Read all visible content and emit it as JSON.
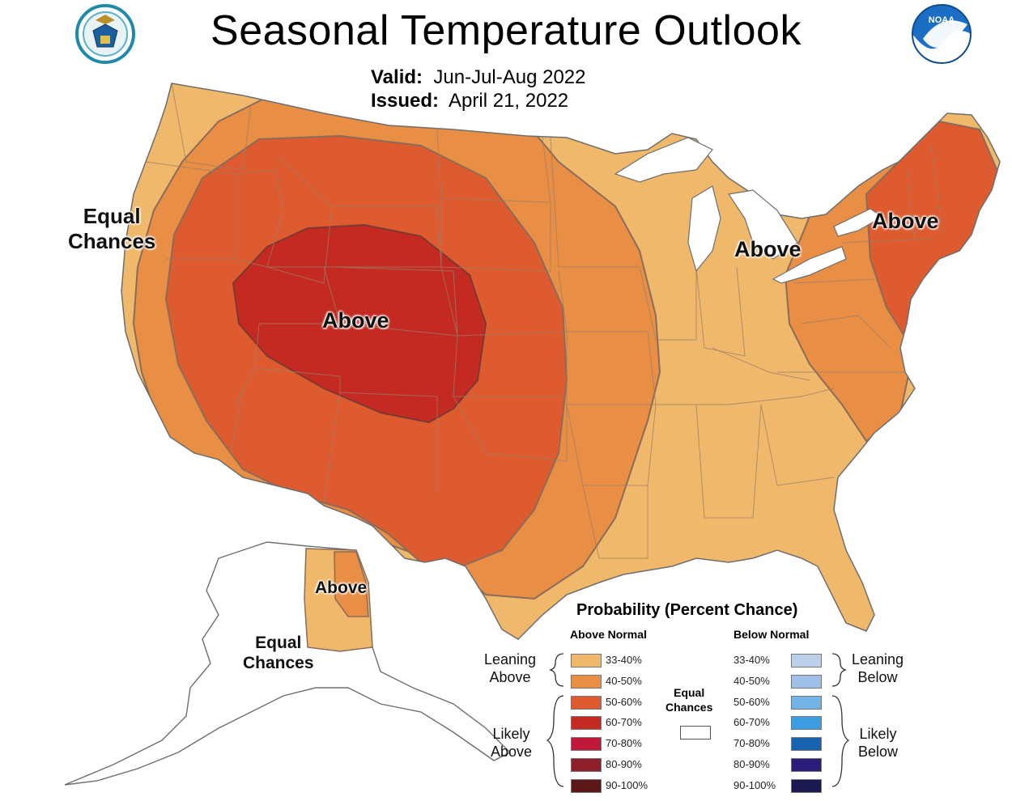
{
  "title": "Seasonal Temperature Outlook",
  "valid": {
    "label": "Valid:",
    "value": "Jun-Jul-Aug 2022"
  },
  "issued": {
    "label": "Issued:",
    "value": "April 21, 2022"
  },
  "logos": {
    "left": "doc-seal-icon",
    "right": "noaa-logo-icon",
    "right_text": "NOAA"
  },
  "map_labels": {
    "west_equal": "Equal\nChances",
    "central_above": "Above",
    "midwest_above": "Above",
    "northeast_above": "Above",
    "alaska_above": "Above",
    "alaska_equal": "Equal\nChances"
  },
  "legend": {
    "title": "Probability (Percent Chance)",
    "above_header": "Above Normal",
    "below_header": "Below Normal",
    "leaning_above": "Leaning\nAbove",
    "likely_above": "Likely\nAbove",
    "leaning_below": "Leaning\nBelow",
    "likely_below": "Likely\nBelow",
    "equal_chances": "Equal\nChances",
    "above": [
      {
        "range": "33-40%",
        "color": "#f0b86a"
      },
      {
        "range": "40-50%",
        "color": "#e98e45"
      },
      {
        "range": "50-60%",
        "color": "#dd5b2e"
      },
      {
        "range": "60-70%",
        "color": "#c42a21"
      },
      {
        "range": "70-80%",
        "color": "#c0183a"
      },
      {
        "range": "80-90%",
        "color": "#8e1f2b"
      },
      {
        "range": "90-100%",
        "color": "#5c1818"
      }
    ],
    "below": [
      {
        "range": "33-40%",
        "color": "#bcd0eb"
      },
      {
        "range": "40-50%",
        "color": "#9fc0e6"
      },
      {
        "range": "50-60%",
        "color": "#74b3e6"
      },
      {
        "range": "60-70%",
        "color": "#3c9ee0"
      },
      {
        "range": "70-80%",
        "color": "#1763b0"
      },
      {
        "range": "80-90%",
        "color": "#2a1d7a"
      },
      {
        "range": "90-100%",
        "color": "#1c1850"
      }
    ]
  },
  "colors": {
    "lean_33_40": "#f0b86a",
    "lean_40_50": "#e98e45",
    "likely_50_60": "#dd5b2e",
    "likely_60_70": "#c42a21"
  }
}
